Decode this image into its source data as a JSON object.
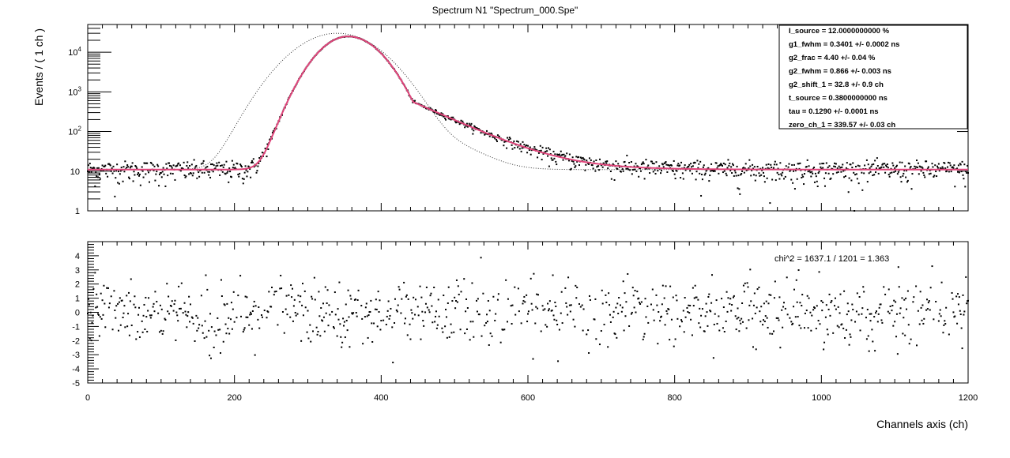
{
  "window": {
    "title": "Spectrum N1 \"Spectrum_000.Spe\""
  },
  "colors": {
    "background": "#ffffff",
    "data_points": "#000000",
    "fit_curve": "#e0457b",
    "component_curve": "#333333"
  },
  "chart_data": [
    {
      "type": "scatter",
      "panel": "spectrum",
      "title": "Spectrum N1 \"Spectrum_000.Spe\"",
      "xlabel": "",
      "ylabel": "Events / ( 1 ch )",
      "xlim": [
        0,
        1200
      ],
      "ylim": [
        1,
        50000
      ],
      "yscale": "log",
      "x_ticks": [
        0,
        200,
        400,
        600,
        800,
        1000,
        1200
      ],
      "y_tick_labels": [
        "1",
        "10",
        "10^2",
        "10^3",
        "10^4"
      ],
      "grid": false,
      "legend_placement": "top-right",
      "series": [
        {
          "kind": "points",
          "description_of_shape": "log-normal-like peak",
          "peak_channel": 355,
          "peak_value": 25000,
          "baseline": 11
        },
        {
          "kind": "fit-line",
          "peak_channel": 355,
          "peak_value": 25000,
          "baseline": 11
        },
        {
          "kind": "dotted-component",
          "peak_channel": 340,
          "peak_value": 30000,
          "baseline": 11
        }
      ],
      "parameters": [
        "I_source =  12.0000000000 %",
        "g1_fwhm =  0.3401 +/- 0.0002 ns",
        "g2_frac =  4.40 +/- 0.04 %",
        "g2_fwhm =  0.866 +/- 0.003 ns",
        "g2_shift_1 =  32.8 +/- 0.9 ch",
        "t_source =  0.3800000000 ns",
        "tau =  0.1290 +/- 0.0001 ns",
        "zero_ch_1 =  339.57 +/- 0.03 ch"
      ]
    },
    {
      "type": "scatter",
      "panel": "residuals",
      "xlabel": "Channels axis (ch)",
      "ylabel": "",
      "xlim": [
        0,
        1200
      ],
      "ylim": [
        -5,
        5
      ],
      "x_ticks": [
        0,
        200,
        400,
        600,
        800,
        1000,
        1200
      ],
      "y_ticks": [
        4,
        3,
        2,
        1,
        0,
        -1,
        -2,
        -3,
        -4,
        -5
      ],
      "grid": false,
      "annotation": "chi^2 = 1637.1 / 1201 = 1.363"
    }
  ]
}
